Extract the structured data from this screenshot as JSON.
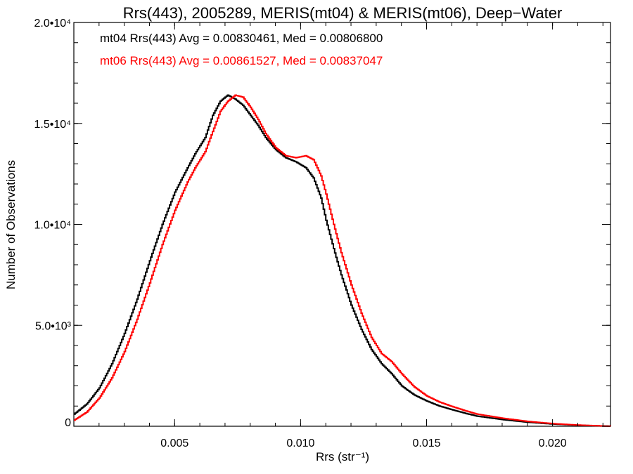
{
  "chart_data": {
    "type": "line",
    "title": "Rrs(443), 2005289, MERIS(mt04) & MERIS(mt06), Deep−Water",
    "xlabel": "Rrs (str⁻¹)",
    "ylabel": "Number of Observations",
    "xlim": [
      0.001,
      0.0223
    ],
    "ylim": [
      0,
      20000
    ],
    "x_ticks": [
      {
        "value": 0.005,
        "label": "0.005"
      },
      {
        "value": 0.01,
        "label": "0.010"
      },
      {
        "value": 0.015,
        "label": "0.015"
      },
      {
        "value": 0.02,
        "label": "0.020"
      }
    ],
    "y_ticks": [
      {
        "value": 0,
        "label": "0"
      },
      {
        "value": 5000,
        "label": "5.0•10³"
      },
      {
        "value": 10000,
        "label": "1.0•10⁴"
      },
      {
        "value": 15000,
        "label": "1.5•10⁴"
      },
      {
        "value": 20000,
        "label": "2.0•10⁴"
      }
    ],
    "grid": false,
    "legend": "top-left",
    "series": [
      {
        "name": "mt04",
        "color": "#000000",
        "stat_text": "mt04 Rrs(443) Avg = 0.00830461, Med = 0.00806800",
        "x": [
          0.001,
          0.0015,
          0.002,
          0.0025,
          0.003,
          0.0035,
          0.004,
          0.0045,
          0.005,
          0.0055,
          0.0058,
          0.0062,
          0.0065,
          0.0068,
          0.0071,
          0.0074,
          0.0077,
          0.008,
          0.0083,
          0.0086,
          0.009,
          0.0094,
          0.0098,
          0.0102,
          0.0105,
          0.0108,
          0.011,
          0.0113,
          0.0116,
          0.012,
          0.0124,
          0.0128,
          0.0132,
          0.0136,
          0.014,
          0.0145,
          0.015,
          0.0155,
          0.016,
          0.0165,
          0.017,
          0.018,
          0.019,
          0.02,
          0.021,
          0.0223
        ],
        "y": [
          600,
          1100,
          1900,
          3100,
          4600,
          6300,
          8200,
          10000,
          11600,
          12800,
          13500,
          14300,
          15400,
          16100,
          16400,
          16200,
          15900,
          15400,
          14900,
          14300,
          13700,
          13300,
          13100,
          12800,
          12300,
          11300,
          10200,
          8800,
          7500,
          6000,
          4800,
          3800,
          3100,
          2600,
          2000,
          1550,
          1250,
          1000,
          820,
          650,
          500,
          330,
          200,
          110,
          50,
          0
        ]
      },
      {
        "name": "mt06",
        "color": "#ff0000",
        "stat_text": "mt06 Rrs(443) Avg = 0.00861527, Med = 0.00837047",
        "x": [
          0.001,
          0.0015,
          0.002,
          0.0025,
          0.003,
          0.0035,
          0.004,
          0.0045,
          0.005,
          0.0055,
          0.0058,
          0.0062,
          0.0065,
          0.0068,
          0.0071,
          0.0074,
          0.0077,
          0.008,
          0.0083,
          0.0086,
          0.009,
          0.0094,
          0.0098,
          0.0102,
          0.0105,
          0.0108,
          0.011,
          0.0113,
          0.0116,
          0.012,
          0.0124,
          0.0128,
          0.0132,
          0.0136,
          0.014,
          0.0145,
          0.015,
          0.0155,
          0.016,
          0.0165,
          0.017,
          0.018,
          0.019,
          0.02,
          0.021,
          0.0223
        ],
        "y": [
          300,
          700,
          1400,
          2400,
          3700,
          5300,
          7100,
          9000,
          10700,
          12100,
          12800,
          13600,
          14600,
          15600,
          16100,
          16400,
          16300,
          15800,
          15200,
          14500,
          13800,
          13400,
          13300,
          13400,
          13200,
          12400,
          11500,
          10000,
          8600,
          7000,
          5600,
          4400,
          3600,
          3200,
          2600,
          1950,
          1500,
          1200,
          980,
          780,
          600,
          400,
          240,
          130,
          60,
          0
        ]
      }
    ]
  }
}
